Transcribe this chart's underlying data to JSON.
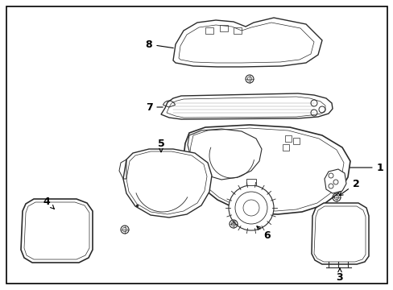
{
  "background_color": "#ffffff",
  "border_color": "#000000",
  "line_color": "#2a2a2a",
  "fig_width": 4.89,
  "fig_height": 3.6,
  "dpi": 100,
  "label_fontsize": 9
}
